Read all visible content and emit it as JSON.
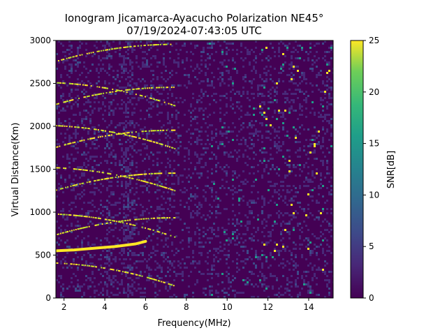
{
  "chart_data": {
    "type": "heatmap",
    "title": "Ionogram Jicamarca-Ayacucho Polarization NE45°",
    "subtitle": "07/19/2024-07:43:05 UTC",
    "xlabel": "Frequency(MHz)",
    "ylabel": "Virtual Distance(Km)",
    "xlim": [
      1.6,
      15.2
    ],
    "ylim": [
      0,
      3000
    ],
    "xticks": [
      2,
      4,
      6,
      8,
      10,
      12,
      14
    ],
    "yticks": [
      0,
      500,
      1000,
      1500,
      2000,
      2500,
      3000
    ],
    "colorbar": {
      "label": "SNR[dB]",
      "range": [
        0,
        25
      ],
      "ticks": [
        0,
        5,
        10,
        15,
        20,
        25
      ],
      "colormap": "viridis"
    },
    "grid": false,
    "traces": [
      {
        "x": [
          1.6,
          2.5,
          3.5,
          4.5,
          5.5,
          6.0
        ],
        "y": [
          550,
          560,
          580,
          600,
          630,
          660
        ]
      }
    ]
  }
}
